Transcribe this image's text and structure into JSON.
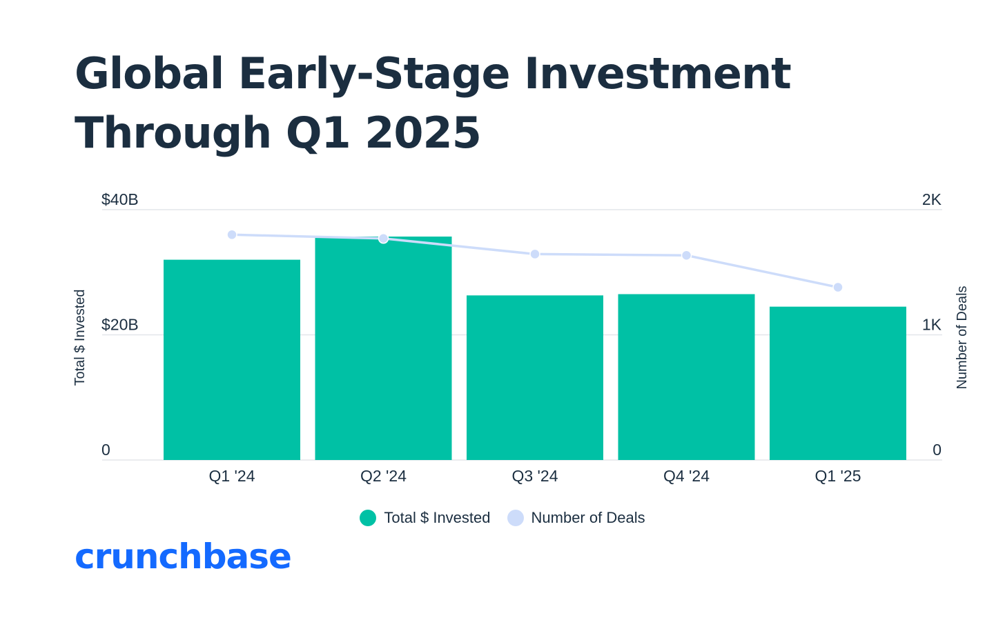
{
  "title": "Global Early-Stage Investment Through Q1 2025",
  "logo_text": "crunchbase",
  "colors": {
    "bars": "#00c1a5",
    "line": "#cddcfa",
    "title": "#1b2e40",
    "grid": "#e3e6ea",
    "logo": "#146aff"
  },
  "legend": [
    {
      "label": "Total $ Invested",
      "color": "#00c1a5"
    },
    {
      "label": "Number of Deals",
      "color": "#cddcfa"
    }
  ],
  "chart_data": {
    "type": "bar",
    "categories": [
      "Q1 '24",
      "Q2 '24",
      "Q3 '24",
      "Q4 '24",
      "Q1 '25"
    ],
    "series": [
      {
        "name": "Total $ Invested",
        "type": "bar",
        "axis": "left",
        "unit": "$B",
        "values": [
          32,
          35.7,
          26.3,
          26.5,
          24.5
        ]
      },
      {
        "name": "Number of Deals",
        "type": "line",
        "axis": "right",
        "values": [
          1800,
          1770,
          1645,
          1635,
          1380
        ]
      }
    ],
    "y_left": {
      "label": "Total $ Invested",
      "ylim": [
        0,
        40
      ],
      "ticks": [
        0,
        20,
        40
      ],
      "tick_labels": [
        "0",
        "$20B",
        "$40B"
      ]
    },
    "y_right": {
      "label": "Number of Deals",
      "ylim": [
        0,
        2000
      ],
      "ticks": [
        0,
        1000,
        2000
      ],
      "tick_labels": [
        "0",
        "1K",
        "2K"
      ]
    },
    "grid": true,
    "legend_position": "bottom-center"
  }
}
